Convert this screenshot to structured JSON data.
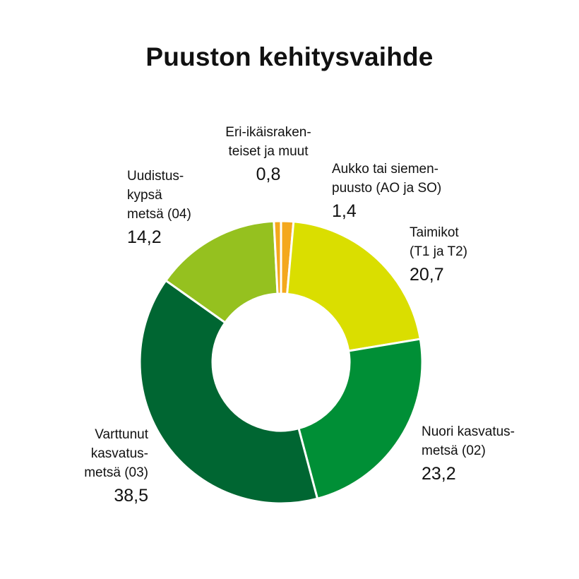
{
  "title": "Puuston kehitysvaihde",
  "chart_data": {
    "type": "donut",
    "title": "Puuston kehitysvaihde",
    "slices": [
      {
        "label_lines": [
          "Aukko tai siemen-",
          "puusto (AO ja SO)"
        ],
        "value": 1.4,
        "value_text": "1,4",
        "color": "#f4a81d"
      },
      {
        "label_lines": [
          "Taimikot",
          "(T1 ja T2)"
        ],
        "value": 20.7,
        "value_text": "20,7",
        "color": "#dade00"
      },
      {
        "label_lines": [
          "Nuori kasvatus-",
          "metsä (02)"
        ],
        "value": 23.2,
        "value_text": "23,2",
        "color": "#008f36"
      },
      {
        "label_lines": [
          "Varttunut",
          "kasvatus-",
          "metsä (03)"
        ],
        "value": 38.5,
        "value_text": "38,5",
        "color": "#006632"
      },
      {
        "label_lines": [
          "Uudistus-",
          "kypsä",
          "metsä (04)"
        ],
        "value": 14.2,
        "value_text": "14,2",
        "color": "#95c11f"
      },
      {
        "label_lines": [
          "Eri-ikäisraken-",
          "teiset ja muut"
        ],
        "value": 0.8,
        "value_text": "0,8",
        "color": "#f4a81d"
      }
    ]
  }
}
